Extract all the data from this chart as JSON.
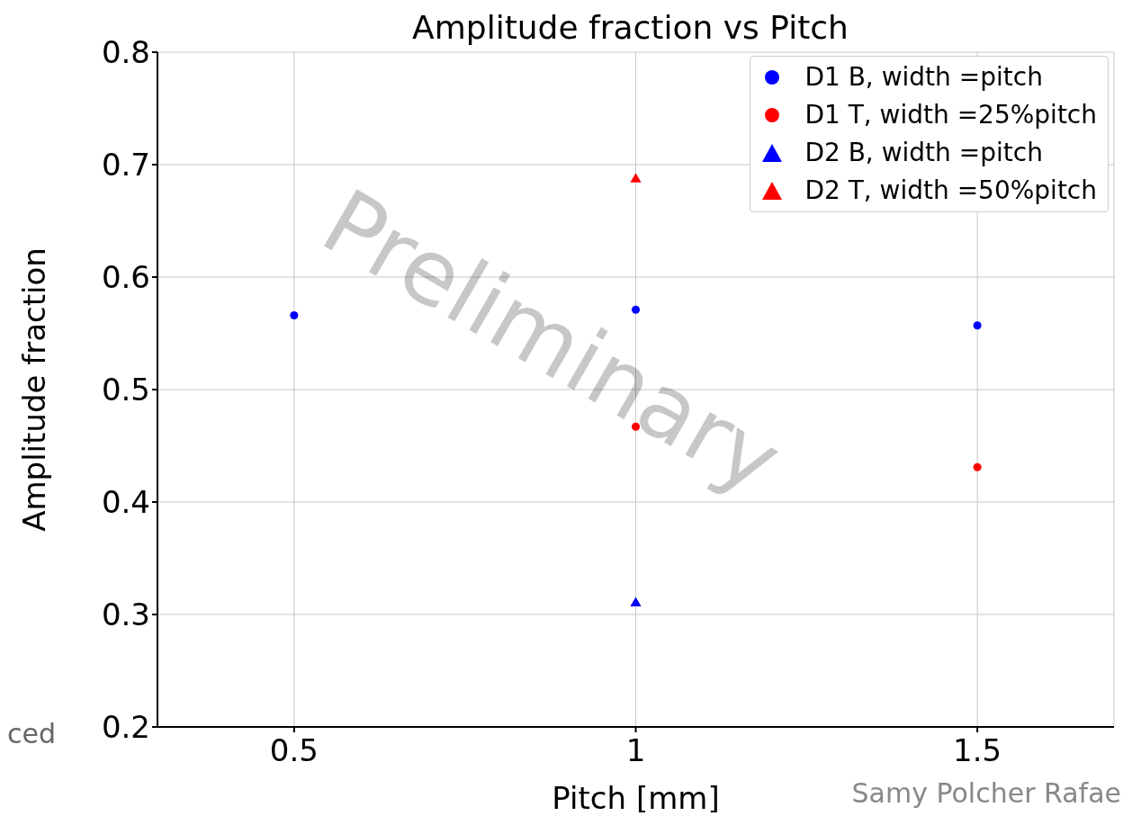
{
  "chart_data": {
    "type": "scatter",
    "title": "Amplitude fraction vs Pitch",
    "xlabel": "Pitch [mm]",
    "ylabel": "Amplitude fraction",
    "xlim": [
      0.3,
      1.7
    ],
    "xticks": [
      0.5,
      1,
      1.5
    ],
    "ylim": [
      0.2,
      0.8
    ],
    "yticks": [
      0.2,
      0.3,
      0.4,
      0.5,
      0.6,
      0.7,
      0.8
    ],
    "grid": true,
    "legend": "top right",
    "series": [
      {
        "name": "D1 B, width =pitch",
        "color": "#0000ff",
        "marker": "circle",
        "x": [
          0.5,
          1,
          1.5
        ],
        "values": [
          0.566,
          0.571,
          0.557
        ]
      },
      {
        "name": "D1 T, width =25%pitch",
        "color": "#ff0000",
        "marker": "circle",
        "x": [
          1,
          1.5
        ],
        "values": [
          0.467,
          0.431
        ]
      },
      {
        "name": "D2 B, width =pitch",
        "color": "#0000ff",
        "marker": "triangle",
        "x": [
          1
        ],
        "values": [
          0.31
        ]
      },
      {
        "name": "D2 T, width =50%pitch",
        "color": "#ff0000",
        "marker": "triangle",
        "x": [
          1
        ],
        "values": [
          0.687
        ]
      }
    ],
    "annotations": [
      "Preliminary",
      "ced",
      "Samy Polcher Rafae"
    ]
  }
}
